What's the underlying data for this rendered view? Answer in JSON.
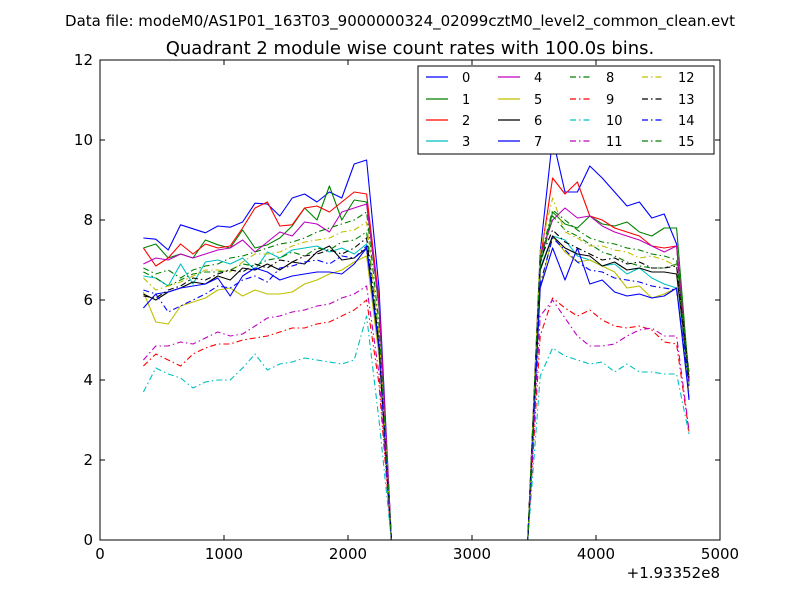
{
  "chart_data": {
    "type": "line",
    "suptitle": "Data file: modeM0/AS1P01_163T03_9000000324_02099cztM0_level2_common_clean.evt",
    "title": "Quadrant 2 module wise count rates with 100.0s bins.",
    "xlabel": "",
    "ylabel": "",
    "xlim": [
      0,
      5000
    ],
    "ylim": [
      0,
      12
    ],
    "x_ticks": [
      0,
      1000,
      2000,
      3000,
      4000,
      5000
    ],
    "y_ticks": [
      0,
      2,
      4,
      6,
      8,
      10,
      12
    ],
    "offset_label": "+1.93352e8",
    "legend_position": "upper-right",
    "legend_columns": 4,
    "grid": false,
    "x": [
      350,
      450,
      550,
      650,
      750,
      850,
      950,
      1050,
      1150,
      1250,
      1350,
      1450,
      1550,
      1650,
      1750,
      1850,
      1950,
      2050,
      2150,
      2250,
      2350,
      2450,
      2550,
      2650,
      2750,
      2850,
      2950,
      3050,
      3150,
      3250,
      3350,
      3450,
      3550,
      3650,
      3750,
      3850,
      3950,
      4050,
      4150,
      4250,
      4350,
      4450,
      4550,
      4650,
      4750
    ],
    "series": [
      {
        "name": "0",
        "color": "#0000ff",
        "dash": "solid",
        "values": [
          7.55,
          7.52,
          7.25,
          7.88,
          7.78,
          7.68,
          7.85,
          7.82,
          7.95,
          8.42,
          8.4,
          8.1,
          8.55,
          8.65,
          8.45,
          8.7,
          8.55,
          9.4,
          9.5,
          6.3,
          0,
          0,
          0,
          0,
          0,
          0,
          0,
          0,
          0,
          0,
          0,
          0,
          7.2,
          10.05,
          8.7,
          8.7,
          9.35,
          9.05,
          8.7,
          8.35,
          8.45,
          8.05,
          8.15,
          7.4,
          3.5
        ]
      },
      {
        "name": "1",
        "color": "#008000",
        "dash": "solid",
        "values": [
          7.3,
          7.4,
          7.05,
          7.15,
          7.05,
          7.5,
          7.38,
          7.3,
          7.75,
          7.3,
          7.38,
          7.55,
          7.85,
          8.3,
          8.0,
          8.85,
          8.0,
          8.5,
          8.45,
          5.8,
          0,
          0,
          0,
          0,
          0,
          0,
          0,
          0,
          0,
          0,
          0,
          0,
          6.9,
          8.2,
          7.9,
          7.8,
          8.1,
          7.9,
          7.85,
          7.95,
          7.7,
          7.6,
          7.8,
          7.8,
          4.0
        ]
      },
      {
        "name": "2",
        "color": "#ff0000",
        "dash": "solid",
        "values": [
          7.3,
          6.85,
          7.05,
          7.4,
          7.15,
          7.4,
          7.3,
          7.35,
          7.8,
          8.3,
          8.45,
          7.85,
          7.88,
          8.3,
          8.35,
          8.2,
          8.45,
          8.7,
          8.65,
          6.0,
          0,
          0,
          0,
          0,
          0,
          0,
          0,
          0,
          0,
          0,
          0,
          0,
          7.0,
          9.05,
          8.65,
          8.95,
          8.1,
          8.0,
          7.8,
          7.7,
          7.6,
          7.35,
          7.3,
          7.35,
          3.95
        ]
      },
      {
        "name": "3",
        "color": "#00bfbf",
        "dash": "solid",
        "values": [
          6.6,
          6.55,
          6.35,
          6.9,
          6.4,
          6.95,
          7.0,
          6.9,
          7.05,
          6.75,
          7.2,
          7.05,
          7.25,
          7.3,
          7.35,
          7.2,
          7.3,
          7.15,
          7.4,
          4.8,
          0,
          0,
          0,
          0,
          0,
          0,
          0,
          0,
          0,
          0,
          0,
          0,
          6.8,
          7.6,
          7.5,
          7.1,
          7.0,
          6.85,
          6.9,
          6.65,
          6.8,
          6.55,
          6.4,
          6.3,
          3.9
        ]
      },
      {
        "name": "4",
        "color": "#bf00bf",
        "dash": "solid",
        "values": [
          6.9,
          7.05,
          7.0,
          7.15,
          7.05,
          7.15,
          7.25,
          7.3,
          7.5,
          7.2,
          7.45,
          7.7,
          7.6,
          7.95,
          7.9,
          7.7,
          8.2,
          8.3,
          8.4,
          5.9,
          0,
          0,
          0,
          0,
          0,
          0,
          0,
          0,
          0,
          0,
          0,
          0,
          7.1,
          8.0,
          8.3,
          8.05,
          8.1,
          7.85,
          7.7,
          7.6,
          7.5,
          7.35,
          7.2,
          7.35,
          3.95
        ]
      },
      {
        "name": "5",
        "color": "#bfbf00",
        "dash": "solid",
        "values": [
          6.2,
          5.45,
          5.4,
          5.85,
          5.95,
          6.05,
          6.25,
          6.3,
          6.1,
          6.25,
          6.15,
          6.15,
          6.2,
          6.4,
          6.5,
          6.65,
          6.75,
          6.95,
          7.1,
          4.6,
          0,
          0,
          0,
          0,
          0,
          0,
          0,
          0,
          0,
          0,
          0,
          0,
          6.3,
          7.6,
          7.2,
          6.95,
          7.0,
          6.85,
          6.7,
          6.3,
          6.35,
          6.05,
          6.15,
          6.3,
          3.7
        ]
      },
      {
        "name": "6",
        "color": "#000000",
        "dash": "solid",
        "values": [
          6.15,
          6.0,
          6.2,
          6.3,
          6.45,
          6.4,
          6.6,
          6.5,
          6.8,
          6.75,
          6.9,
          6.75,
          6.95,
          6.9,
          7.2,
          7.35,
          7.0,
          7.05,
          7.3,
          4.9,
          0,
          0,
          0,
          0,
          0,
          0,
          0,
          0,
          0,
          0,
          0,
          0,
          6.75,
          7.6,
          7.3,
          7.15,
          7.1,
          6.85,
          6.95,
          6.75,
          6.8,
          6.7,
          6.7,
          6.65,
          4.05
        ]
      },
      {
        "name": "7",
        "color": "#0000ff",
        "dash": "solid",
        "values": [
          5.8,
          6.15,
          6.2,
          6.3,
          6.35,
          6.4,
          6.55,
          6.1,
          6.6,
          6.8,
          6.7,
          6.5,
          6.6,
          6.65,
          6.7,
          6.7,
          6.65,
          6.9,
          7.3,
          4.8,
          0,
          0,
          0,
          0,
          0,
          0,
          0,
          0,
          0,
          0,
          0,
          0,
          6.3,
          7.3,
          6.5,
          7.3,
          6.4,
          6.5,
          6.2,
          6.1,
          6.15,
          6.05,
          6.1,
          6.3,
          3.55
        ]
      },
      {
        "name": "8",
        "color": "#008000",
        "dash": "dashdot",
        "values": [
          6.7,
          6.55,
          6.35,
          6.5,
          6.65,
          6.7,
          6.7,
          6.75,
          6.9,
          6.85,
          7.0,
          7.05,
          7.2,
          7.1,
          7.3,
          7.25,
          7.45,
          7.5,
          7.7,
          5.1,
          0,
          0,
          0,
          0,
          0,
          0,
          0,
          0,
          0,
          0,
          0,
          0,
          6.85,
          8.1,
          7.75,
          7.6,
          7.4,
          7.2,
          7.1,
          6.95,
          6.85,
          6.8,
          6.8,
          6.9,
          4.1
        ]
      },
      {
        "name": "9",
        "color": "#ff0000",
        "dash": "dashdot",
        "values": [
          4.35,
          4.65,
          4.5,
          4.35,
          4.65,
          4.8,
          4.9,
          4.9,
          5.0,
          5.05,
          5.1,
          5.2,
          5.3,
          5.3,
          5.4,
          5.45,
          5.6,
          5.75,
          6.0,
          3.9,
          0,
          0,
          0,
          0,
          0,
          0,
          0,
          0,
          0,
          0,
          0,
          0,
          5.1,
          6.05,
          5.8,
          5.6,
          5.75,
          5.5,
          5.35,
          5.3,
          5.35,
          5.25,
          4.95,
          4.9,
          2.7
        ]
      },
      {
        "name": "10",
        "color": "#00bfbf",
        "dash": "dashdot",
        "values": [
          3.7,
          4.3,
          4.15,
          4.05,
          3.8,
          3.95,
          4.0,
          4.0,
          4.3,
          4.65,
          4.25,
          4.4,
          4.45,
          4.55,
          4.5,
          4.45,
          4.4,
          4.5,
          5.6,
          3.0,
          0,
          0,
          0,
          0,
          0,
          0,
          0,
          0,
          0,
          0,
          0,
          0,
          4.1,
          4.8,
          4.6,
          4.5,
          4.4,
          4.45,
          4.2,
          4.4,
          4.2,
          4.2,
          4.15,
          4.15,
          2.65
        ]
      },
      {
        "name": "11",
        "color": "#bf00bf",
        "dash": "dashdot",
        "values": [
          4.5,
          4.85,
          4.85,
          4.95,
          4.9,
          5.05,
          5.2,
          5.1,
          5.15,
          5.35,
          5.55,
          5.6,
          5.7,
          5.75,
          5.85,
          5.9,
          6.05,
          6.15,
          6.35,
          4.15,
          0,
          0,
          0,
          0,
          0,
          0,
          0,
          0,
          0,
          0,
          0,
          0,
          5.6,
          6.0,
          5.55,
          5.1,
          4.85,
          4.85,
          4.9,
          5.1,
          5.25,
          5.3,
          5.1,
          5.1,
          2.75
        ]
      },
      {
        "name": "12",
        "color": "#bfbf00",
        "dash": "dashdot",
        "values": [
          6.55,
          6.25,
          6.35,
          6.45,
          6.6,
          6.75,
          6.75,
          6.7,
          6.95,
          7.15,
          7.15,
          7.2,
          7.35,
          7.45,
          7.5,
          7.55,
          7.7,
          7.75,
          7.95,
          5.2,
          0,
          0,
          0,
          0,
          0,
          0,
          0,
          0,
          0,
          0,
          0,
          0,
          7.25,
          8.55,
          7.7,
          7.55,
          7.35,
          7.35,
          7.25,
          7.2,
          7.05,
          7.1,
          7.0,
          6.85,
          4.1
        ]
      },
      {
        "name": "13",
        "color": "#000000",
        "dash": "dashdot",
        "values": [
          6.1,
          6.05,
          6.25,
          6.35,
          6.55,
          6.5,
          6.65,
          6.75,
          6.7,
          6.9,
          6.8,
          7.0,
          6.95,
          7.1,
          7.15,
          7.25,
          7.15,
          7.3,
          7.55,
          4.9,
          0,
          0,
          0,
          0,
          0,
          0,
          0,
          0,
          0,
          0,
          0,
          0,
          7.0,
          7.75,
          7.45,
          7.3,
          7.15,
          7.0,
          7.05,
          6.9,
          6.95,
          6.8,
          6.8,
          6.85,
          4.15
        ]
      },
      {
        "name": "14",
        "color": "#0000ff",
        "dash": "dashdot",
        "values": [
          6.25,
          6.15,
          5.7,
          5.85,
          6.0,
          6.15,
          6.35,
          6.3,
          6.5,
          6.6,
          6.45,
          6.8,
          6.85,
          6.95,
          7.0,
          6.9,
          7.1,
          7.05,
          7.35,
          4.8,
          0,
          0,
          0,
          0,
          0,
          0,
          0,
          0,
          0,
          0,
          0,
          0,
          6.4,
          7.55,
          7.25,
          6.95,
          6.75,
          6.7,
          6.55,
          6.5,
          6.45,
          6.35,
          6.3,
          6.25,
          3.85
        ]
      },
      {
        "name": "15",
        "color": "#008000",
        "dash": "dashdot",
        "values": [
          6.8,
          6.65,
          6.75,
          6.55,
          6.75,
          6.85,
          6.9,
          7.05,
          7.1,
          7.2,
          7.3,
          7.4,
          7.45,
          7.55,
          7.7,
          7.8,
          7.9,
          8.0,
          8.2,
          5.4,
          0,
          0,
          0,
          0,
          0,
          0,
          0,
          0,
          0,
          0,
          0,
          0,
          7.05,
          8.25,
          8.0,
          7.75,
          7.55,
          7.45,
          7.4,
          7.3,
          7.25,
          7.15,
          7.1,
          7.0,
          4.2
        ]
      }
    ]
  }
}
